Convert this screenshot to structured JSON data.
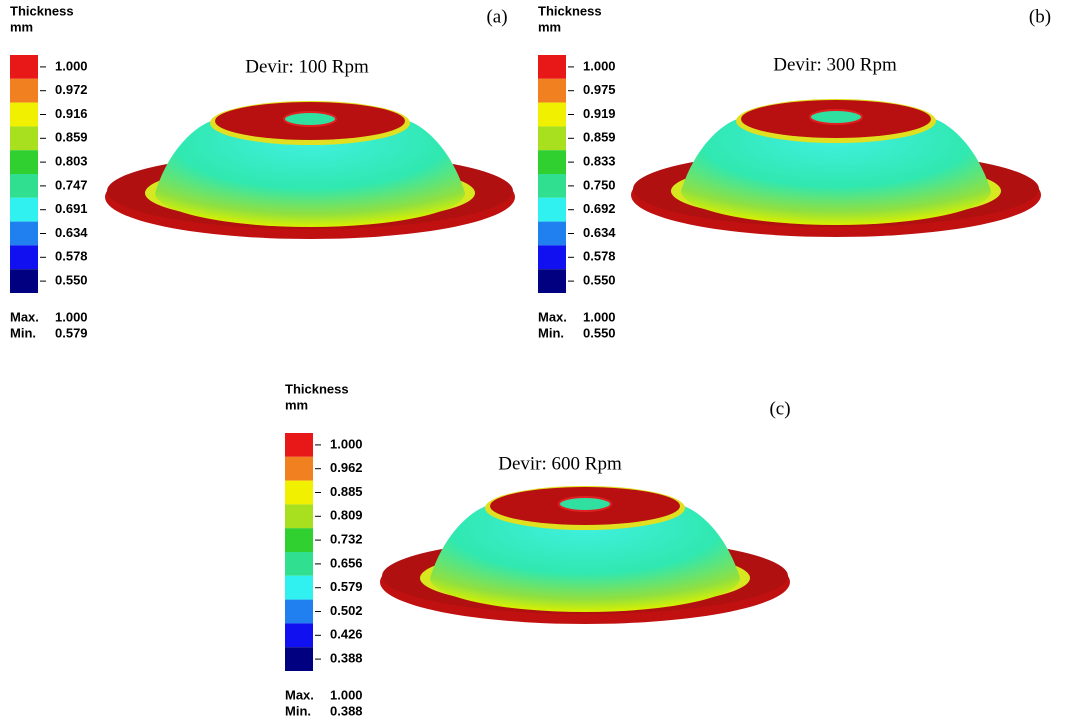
{
  "panels": [
    {
      "label": "(a)",
      "title": "Devir: 100 Rpm",
      "legend_title": "Thickness",
      "unit": "mm",
      "levels": [
        "1.000",
        "0.972",
        "0.916",
        "0.859",
        "0.803",
        "0.747",
        "0.691",
        "0.634",
        "0.578",
        "0.550"
      ],
      "max_label": "Max.",
      "max": "1.000",
      "min_label": "Min.",
      "min": "0.579"
    },
    {
      "label": "(b)",
      "title": "Devir: 300 Rpm",
      "legend_title": "Thickness",
      "unit": "mm",
      "levels": [
        "1.000",
        "0.975",
        "0.919",
        "0.859",
        "0.833",
        "0.750",
        "0.692",
        "0.634",
        "0.578",
        "0.550"
      ],
      "max_label": "Max.",
      "max": "1.000",
      "min_label": "Min.",
      "min": "0.550"
    },
    {
      "label": "(c)",
      "title": "Devir: 600 Rpm",
      "legend_title": "Thickness",
      "unit": "mm",
      "levels": [
        "1.000",
        "0.962",
        "0.885",
        "0.809",
        "0.732",
        "0.656",
        "0.579",
        "0.502",
        "0.426",
        "0.388"
      ],
      "max_label": "Max.",
      "max": "1.000",
      "min_label": "Min.",
      "min": "0.388"
    }
  ]
}
